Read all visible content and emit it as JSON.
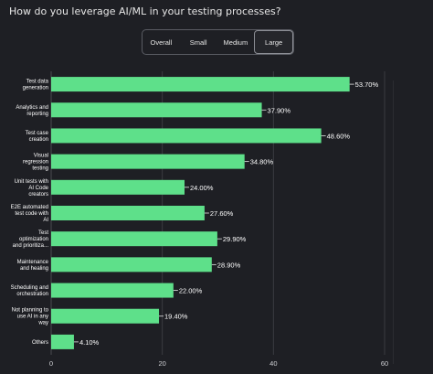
{
  "page": {
    "question": "How do you leverage AI/ML in your testing processes?"
  },
  "tabs": [
    {
      "label": "Overall",
      "active": false
    },
    {
      "label": "Small",
      "active": false
    },
    {
      "label": "Medium",
      "active": false
    },
    {
      "label": "Large",
      "active": true
    }
  ],
  "colors": {
    "background": "#1e1f24",
    "bar": "#5ee08a",
    "grid": "#3a3b41",
    "text": "#ffffff"
  },
  "chart_data": {
    "type": "bar",
    "orientation": "horizontal",
    "categories": [
      [
        "Test data",
        "generation"
      ],
      [
        "Analytics and",
        "reporting"
      ],
      [
        "Test case",
        "creation"
      ],
      [
        "Visual",
        "regression",
        "testing"
      ],
      [
        "Unit tests with",
        "AI Code",
        "creators"
      ],
      [
        "E2E automated",
        "test code with",
        "AI"
      ],
      [
        "Test",
        "optimization",
        "and prioritiza..."
      ],
      [
        "Maintenance",
        "and healing"
      ],
      [
        "Scheduling and",
        "orchestration"
      ],
      [
        "Not planning to",
        "use AI in any",
        "way"
      ],
      [
        "Others"
      ]
    ],
    "values": [
      53.7,
      37.9,
      48.6,
      34.8,
      24.0,
      27.6,
      29.9,
      28.9,
      22.0,
      19.4,
      4.1
    ],
    "value_labels": [
      "53.70%",
      "37.90%",
      "48.60%",
      "34.80%",
      "24.00%",
      "27.60%",
      "29.90%",
      "28.90%",
      "22.00%",
      "19.40%",
      "4.10%"
    ],
    "xlim": [
      0,
      60
    ],
    "xticks": [
      0,
      20,
      40,
      60
    ],
    "grid": true,
    "title": "",
    "xlabel": "",
    "ylabel": ""
  }
}
